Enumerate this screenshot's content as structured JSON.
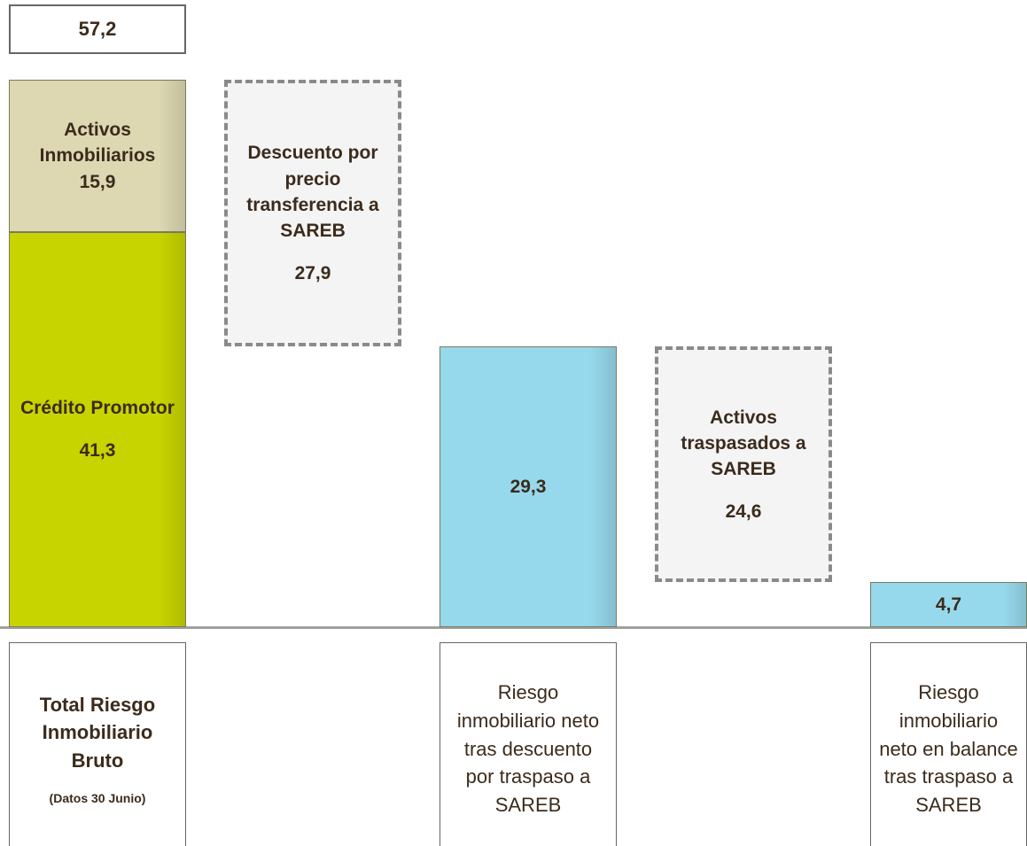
{
  "chart_data": {
    "type": "waterfall",
    "total": 57.2,
    "total_label": "57,2",
    "categories": [
      "Total Riesgo Inmobiliario Bruto",
      null,
      "Riesgo inmobiliario neto tras descuento por traspaso a SAREB",
      null,
      "Riesgo inmobiliario neto en balance tras traspaso a SAREB"
    ],
    "category_notes": [
      "(Datos 30 Junio)",
      null,
      null,
      null,
      null
    ],
    "series": [
      {
        "name": "Crédito Promotor",
        "color": "#c8d400",
        "values": [
          41.3,
          null,
          null,
          null,
          null
        ],
        "value_labels": [
          "41,3",
          null,
          null,
          null,
          null
        ]
      },
      {
        "name": "Activos Inmobiliarios",
        "color": "#ddd8b2",
        "values": [
          15.9,
          null,
          null,
          null,
          null
        ],
        "value_labels": [
          "15,9",
          null,
          null,
          null,
          null
        ]
      },
      {
        "name": "Descuento por precio transferencia a SAREB",
        "color": "#f4f4f4",
        "measure": "decrease",
        "values": [
          null,
          27.9,
          null,
          null,
          null
        ],
        "value_labels": [
          null,
          "27,9",
          null,
          null,
          null
        ]
      },
      {
        "color": "#97d9ec",
        "values": [
          null,
          null,
          29.3,
          null,
          4.7
        ],
        "value_labels": [
          null,
          null,
          "29,3",
          null,
          "4,7"
        ]
      },
      {
        "name": "Activos traspasados a SAREB",
        "color": "#f4f4f4",
        "measure": "decrease",
        "values": [
          null,
          null,
          null,
          24.6,
          null
        ],
        "value_labels": [
          null,
          null,
          null,
          "24,6",
          null
        ]
      }
    ]
  }
}
